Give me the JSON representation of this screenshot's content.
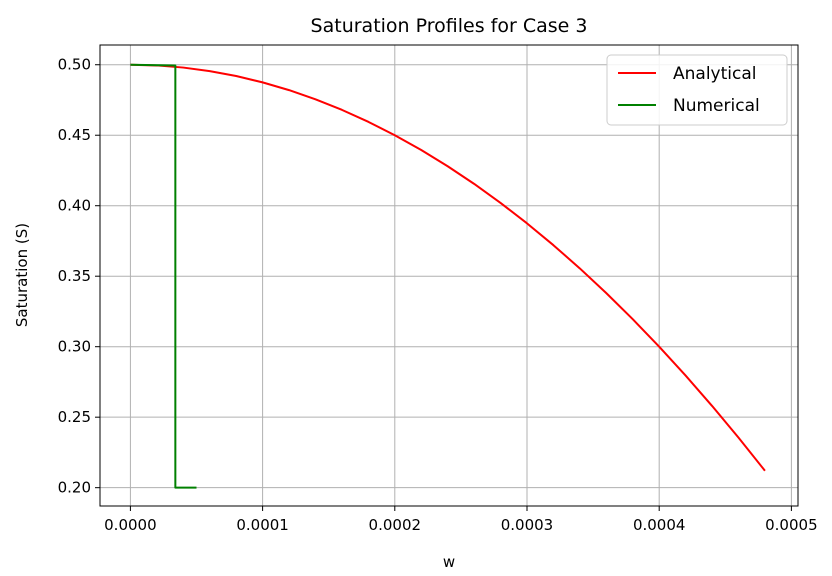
{
  "chart_data": {
    "type": "line",
    "title": "Saturation Profiles for Case 3",
    "xlabel": "w",
    "ylabel": "Saturation (S)",
    "xlim": [
      -2.3e-05,
      0.000505
    ],
    "ylim": [
      0.187,
      0.514
    ],
    "xticks": [
      0.0,
      0.0001,
      0.0002,
      0.0003,
      0.0004,
      0.0005
    ],
    "xtick_labels": [
      "0.0000",
      "0.0001",
      "0.0002",
      "0.0003",
      "0.0004",
      "0.0005"
    ],
    "yticks": [
      0.2,
      0.25,
      0.3,
      0.35,
      0.4,
      0.45,
      0.5
    ],
    "ytick_labels": [
      "0.20",
      "0.25",
      "0.30",
      "0.35",
      "0.40",
      "0.45",
      "0.50"
    ],
    "grid": true,
    "legend_position": "top-right",
    "series": [
      {
        "name": "Analytical",
        "color": "#ff0000",
        "x": [
          0.0,
          2e-05,
          4e-05,
          6e-05,
          8e-05,
          0.0001,
          0.00012,
          0.00014,
          0.00016,
          0.00018,
          0.0002,
          0.00022,
          0.00024,
          0.00026,
          0.00028,
          0.0003,
          0.00032,
          0.00034,
          0.00036,
          0.00038,
          0.0004,
          0.00042,
          0.00044,
          0.00046,
          0.00048
        ],
        "y": [
          0.5,
          0.4995,
          0.498,
          0.4955,
          0.492,
          0.4875,
          0.482,
          0.4755,
          0.468,
          0.4595,
          0.45,
          0.4395,
          0.428,
          0.4155,
          0.402,
          0.3875,
          0.372,
          0.3555,
          0.338,
          0.3195,
          0.3,
          0.2795,
          0.258,
          0.2355,
          0.212
        ]
      },
      {
        "name": "Numerical",
        "color": "#008000",
        "x": [
          0.0,
          3.4e-05,
          3.4e-05,
          5e-05
        ],
        "y": [
          0.5,
          0.4995,
          0.2,
          0.2
        ]
      }
    ]
  }
}
